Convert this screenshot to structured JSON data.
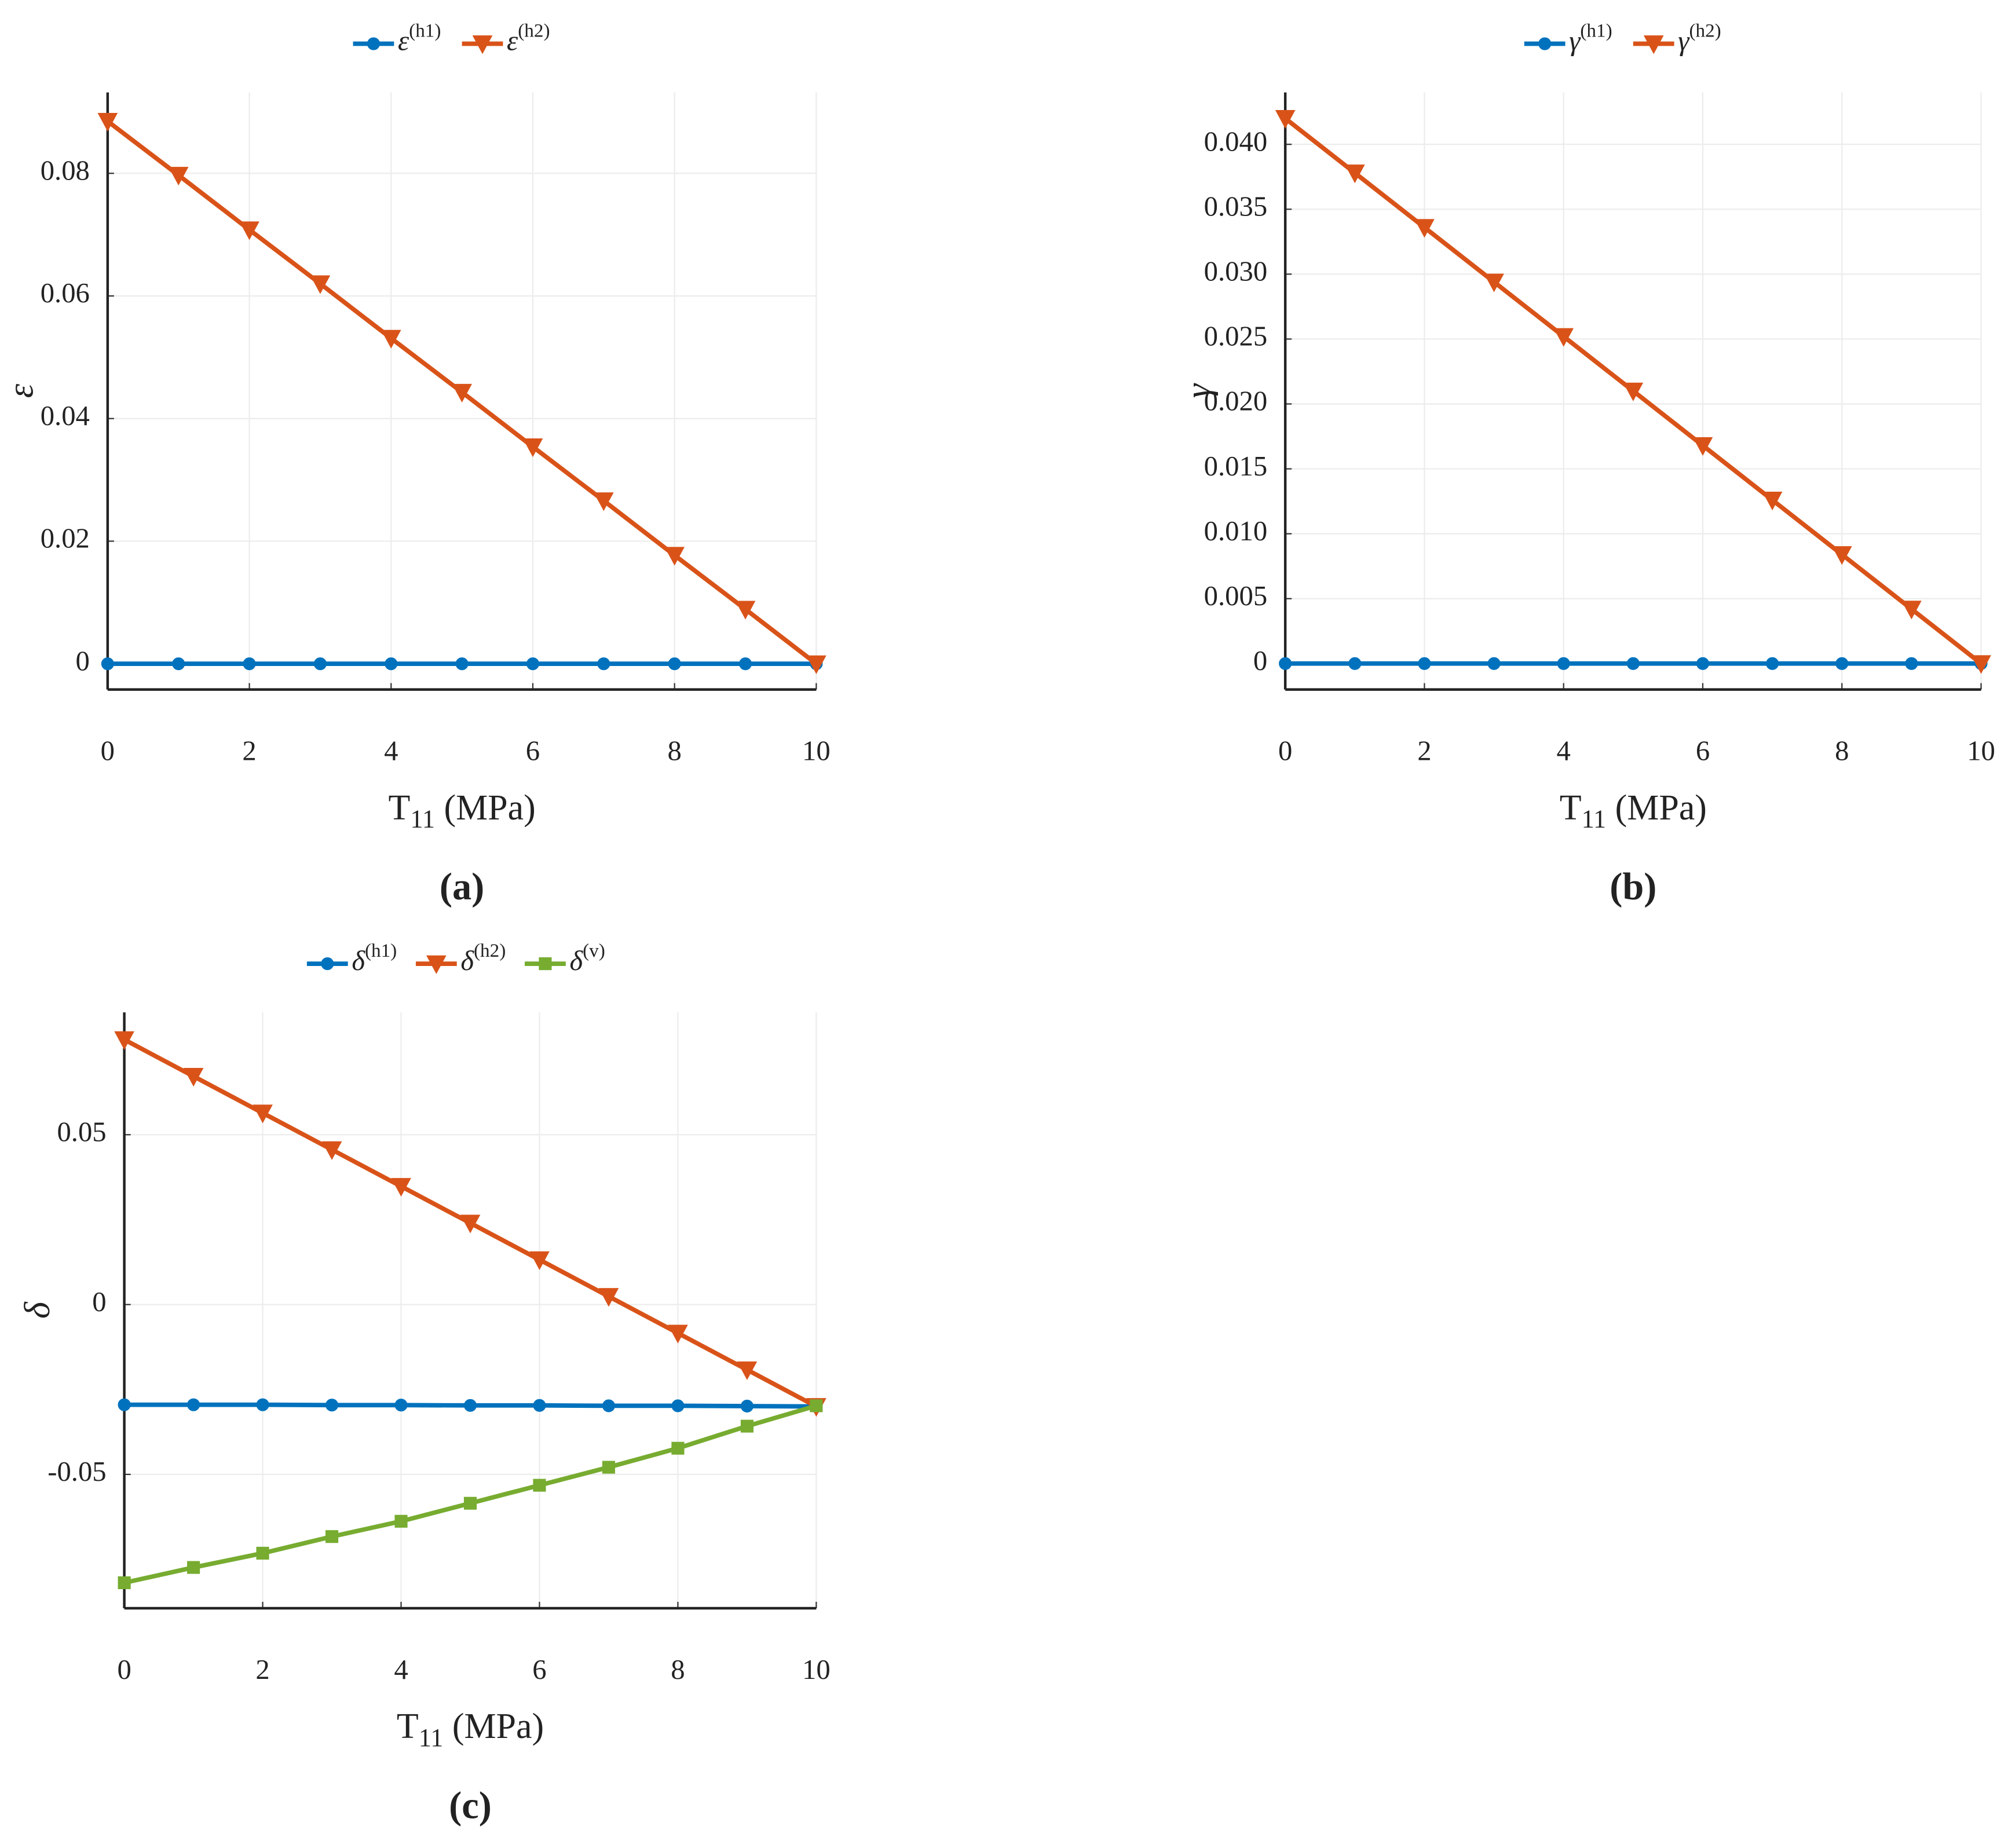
{
  "chart_data": [
    {
      "type": "line",
      "ylabel": "ε",
      "xlabel": "T11 (MPa)",
      "caption": "(a)",
      "x": [
        0,
        1,
        2,
        3,
        4,
        5,
        6,
        7,
        8,
        9,
        10
      ],
      "series": [
        {
          "name": "ε(h1)",
          "color": "#0072bd",
          "marker": "circle",
          "values": [
            0,
            0,
            0,
            0,
            0,
            0,
            0,
            0,
            0,
            0,
            0
          ]
        },
        {
          "name": "ε(h2)",
          "color": "#d95319",
          "marker": "triangle-down",
          "values": [
            0.0885,
            0.0797,
            0.0708,
            0.062,
            0.0531,
            0.0443,
            0.0354,
            0.0266,
            0.0177,
            0.0089,
            0
          ]
        }
      ],
      "xlim": [
        0,
        10
      ],
      "xticks": [
        0,
        2,
        4,
        6,
        8,
        10
      ],
      "ylim": [
        -0.0042,
        0.0932
      ],
      "yticks": [
        0,
        0.02,
        0.04,
        0.06,
        0.08
      ],
      "grid": true,
      "legend": "top"
    },
    {
      "type": "line",
      "ylabel": "γ",
      "xlabel": "T11 (MPa)",
      "caption": "(b)",
      "x": [
        0,
        1,
        2,
        3,
        4,
        5,
        6,
        7,
        8,
        9,
        10
      ],
      "series": [
        {
          "name": "γ(h1)",
          "color": "#0072bd",
          "marker": "circle",
          "values": [
            0,
            0,
            0,
            0,
            0,
            0,
            0,
            0,
            0,
            0,
            0
          ]
        },
        {
          "name": "γ(h2)",
          "color": "#d95319",
          "marker": "triangle-down",
          "values": [
            0.042,
            0.0378,
            0.0336,
            0.0294,
            0.0252,
            0.021,
            0.0168,
            0.0126,
            0.0084,
            0.0042,
            0
          ]
        }
      ],
      "xlim": [
        0,
        10
      ],
      "xticks": [
        0,
        2,
        4,
        6,
        8,
        10
      ],
      "ylim": [
        -0.002,
        0.044
      ],
      "yticks": [
        0,
        0.005,
        {
          "value": 0.01,
          "label": "0.010"
        },
        0.015,
        {
          "value": 0.02,
          "label": "0.020"
        },
        0.025,
        {
          "value": 0.03,
          "label": "0.030"
        },
        0.035,
        {
          "value": 0.04,
          "label": "0.040"
        }
      ],
      "grid": true,
      "legend": "top"
    },
    {
      "type": "line",
      "ylabel": "δ",
      "xlabel": "T11 (MPa)",
      "caption": "(c)",
      "x": [
        0,
        1,
        2,
        3,
        4,
        5,
        6,
        7,
        8,
        9,
        10
      ],
      "series": [
        {
          "name": "δ(h1)",
          "color": "#0072bd",
          "marker": "circle",
          "values": [
            -0.0295,
            -0.0295,
            -0.0295,
            -0.0296,
            -0.0296,
            -0.0297,
            -0.0297,
            -0.0298,
            -0.0298,
            -0.0299,
            -0.03
          ]
        },
        {
          "name": "δ(h2)",
          "color": "#d95319",
          "marker": "triangle-down",
          "values": [
            0.078,
            0.0672,
            0.0564,
            0.0456,
            0.0348,
            0.024,
            0.0132,
            0.0024,
            -0.0084,
            -0.0192,
            -0.03
          ]
        },
        {
          "name": "δ(v)",
          "color": "#77ac30",
          "marker": "square",
          "values": [
            -0.0819,
            -0.0774,
            -0.0732,
            -0.0683,
            -0.0638,
            -0.0585,
            -0.0532,
            -0.0479,
            -0.0423,
            -0.0358,
            -0.0298
          ]
        }
      ],
      "xlim": [
        0,
        10
      ],
      "xticks": [
        0,
        2,
        4,
        6,
        8,
        10
      ],
      "ylim": [
        -0.0894,
        0.086
      ],
      "yticks": [
        -0.05,
        0,
        0.05
      ],
      "grid": true,
      "legend": "top"
    }
  ]
}
